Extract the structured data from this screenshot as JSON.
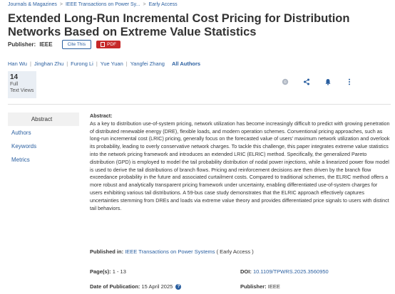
{
  "breadcrumb": [
    "Journals & Magazines",
    "IEEE Transactions on Power Sy...",
    "Early Access"
  ],
  "breadcrumb_sep": ">",
  "title": "Extended Long-Run Incremental Cost Pricing for Distribution Networks Based on Extreme Value Statistics",
  "publisher_label": "Publisher:",
  "publisher_name": "IEEE",
  "cite_label": "Cite This",
  "pdf_label": "PDF",
  "authors": [
    "Han Wu",
    "Jinghan Zhu",
    "Furong Li",
    "Yue Yuan",
    "Yangfei Zhang"
  ],
  "all_authors_label": "All Authors",
  "metric": {
    "count": "14",
    "line1": "Full",
    "line2": "Text Views"
  },
  "sidenav": [
    "Abstract",
    "Authors",
    "Keywords",
    "Metrics"
  ],
  "abstract": {
    "heading": "Abstract:",
    "text": "As a key to distribution use-of-system pricing, network utilization has become increasingly difficult to predict with growing penetration of distributed renewable energy (DRE), flexible loads, and modern operation schemes. Conventional pricing approaches, such as long-run incremental cost (LRIC) pricing, generally focus on the forecasted value of users' maximum network utilization and overlook its probability, leading to overly conservative network charges. To tackle this challenge, this paper integrates extreme value statistics into the network pricing framework and introduces an extended LRIC (ELRIC) method. Specifically, the generalized Pareto distribution (GPD) is employed to model the tail probability distribution of nodal power injections, while a linearized power flow model is used to derive the tail distributions of branch flows. Pricing and reinforcement decisions are then driven by the branch flow exceedance probability in the future and associated curtailment costs. Compared to traditional schemes, the ELRIC method offers a more robust and analytically transparent pricing framework under uncertainty, enabling differentiated use-of-system charges for users exhibiting various tail distributions. A 59-bus case study demonstrates that the ELRIC approach effectively captures uncertainties stemming from DREs and loads via extreme value theory and provides differentiated price signals to users with distinct tail behaviors."
  },
  "published_in": {
    "label": "Published in:",
    "journal": "IEEE Transactions on Power Systems",
    "suffix": "( Early Access )"
  },
  "pages": {
    "label": "Page(s):",
    "value": "1 - 13"
  },
  "doi": {
    "label": "DOI:",
    "value": "10.1109/TPWRS.2025.3560950"
  },
  "pub_date": {
    "label": "Date of Publication:",
    "value": "15 April 2025"
  },
  "publisher2": {
    "label": "Publisher:",
    "value": "IEEE"
  },
  "colors": {
    "link": "#2a5fa0",
    "pdf": "#c62828",
    "metric_bg": "#e9eef4"
  }
}
